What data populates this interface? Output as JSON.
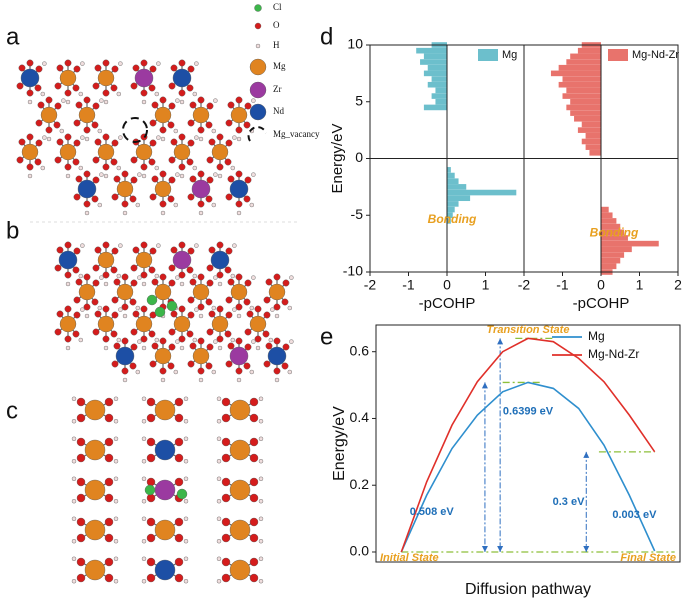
{
  "panel_labels": [
    "a",
    "b",
    "c",
    "d",
    "e"
  ],
  "structure_legend": [
    "Cl",
    "O",
    "H",
    "Mg",
    "Zr",
    "Nd",
    "Mg_vacancy"
  ],
  "chart_data": [
    {
      "type": "cohp",
      "series": [
        {
          "name": "Mg",
          "color": "#6cbfcc"
        }
      ],
      "y": [
        -10,
        -9.5,
        -9,
        -8.5,
        -8,
        -7.5,
        -7,
        -6.5,
        -6,
        -5.5,
        -5,
        -4.5,
        -4,
        -3.5,
        -3,
        -2.5,
        -2,
        -1.5,
        -1,
        -0.5,
        0,
        0.5,
        1,
        1.5,
        2,
        2.5,
        3,
        3.5,
        4,
        4.5,
        5,
        5.5,
        6,
        6.5,
        7,
        7.5,
        8,
        8.5,
        9,
        9.5,
        10
      ],
      "values": [
        0,
        0,
        0,
        0,
        0,
        0,
        0,
        0,
        0,
        0.1,
        0.15,
        0.2,
        0.3,
        0.6,
        1.8,
        0.5,
        0.3,
        0.2,
        0.1,
        0,
        0,
        0,
        0,
        0,
        0,
        0,
        0,
        0,
        0,
        -0.6,
        -0.3,
        -0.4,
        -0.3,
        -0.5,
        -0.4,
        -0.6,
        -0.5,
        -0.7,
        -0.6,
        -0.8,
        -0.4
      ],
      "xlim": [
        -2,
        2
      ],
      "xticks": [
        -2,
        -1,
        0,
        1
      ],
      "ylim": [
        -10,
        10
      ],
      "yticks": [
        -10,
        -5,
        0,
        5,
        10
      ],
      "xlabel": "-pCOHP",
      "ylabel": "Energy/eV",
      "annotations": [
        "Bonding"
      ]
    },
    {
      "type": "cohp",
      "series": [
        {
          "name": "Mg-Nd-Zr",
          "color": "#e8736c"
        }
      ],
      "y": [
        -10,
        -9.5,
        -9,
        -8.5,
        -8,
        -7.5,
        -7,
        -6.5,
        -6,
        -5.5,
        -5,
        -4.5,
        -4,
        -3.5,
        -3,
        -2.5,
        -2,
        -1.5,
        -1,
        -0.5,
        0,
        0.5,
        1,
        1.5,
        2,
        2.5,
        3,
        3.5,
        4,
        4.5,
        5,
        5.5,
        6,
        6.5,
        7,
        7.5,
        8,
        8.5,
        9,
        9.5,
        10
      ],
      "values": [
        0.3,
        0.4,
        0.5,
        0.6,
        0.8,
        1.5,
        0.7,
        0.6,
        0.5,
        0.4,
        0.3,
        0.2,
        0,
        0,
        0,
        0,
        0,
        0,
        0,
        0,
        0,
        -0.3,
        -0.4,
        -0.5,
        -0.4,
        -0.6,
        -0.5,
        -0.7,
        -0.8,
        -0.9,
        -0.8,
        -1.0,
        -0.9,
        -1.1,
        -1.0,
        -1.3,
        -1.1,
        -0.9,
        -0.8,
        -0.6,
        -0.5
      ],
      "xlim": [
        -2,
        2
      ],
      "xticks": [
        -2,
        -1,
        0,
        1,
        2
      ],
      "ylim": [
        -10,
        10
      ],
      "xlabel": "-pCOHP",
      "annotations": [
        "Bonding"
      ]
    },
    {
      "type": "line",
      "x": [
        0,
        0.1,
        0.2,
        0.3,
        0.4,
        0.5,
        0.6,
        0.7,
        0.8,
        0.9,
        1
      ],
      "series": [
        {
          "name": "Mg",
          "color": "#2f8fce",
          "values": [
            0,
            0.17,
            0.31,
            0.41,
            0.48,
            0.508,
            0.49,
            0.43,
            0.32,
            0.17,
            0.003
          ]
        },
        {
          "name": "Mg-Nd-Zr",
          "color": "#e0302a",
          "values": [
            0,
            0.21,
            0.38,
            0.51,
            0.6,
            0.6399,
            0.63,
            0.58,
            0.51,
            0.41,
            0.3
          ]
        }
      ],
      "xlim": [
        -0.1,
        1.1
      ],
      "ylim": [
        -0.03,
        0.68
      ],
      "yticks": [
        {
          "value": 0,
          "label": "0.0"
        },
        {
          "value": 0.2,
          "label": "0.2"
        },
        {
          "value": 0.4,
          "label": "0.4"
        },
        {
          "value": 0.6,
          "label": "0.6"
        }
      ],
      "xlabel": "Diffusion pathway",
      "ylabel": "Energy/eV",
      "legend": "upper right",
      "annotations": [
        "Transition State",
        "Initial State",
        "Final State",
        "0.508 eV",
        "0.6399 eV",
        "0.3 eV",
        "0.003 eV"
      ]
    }
  ]
}
